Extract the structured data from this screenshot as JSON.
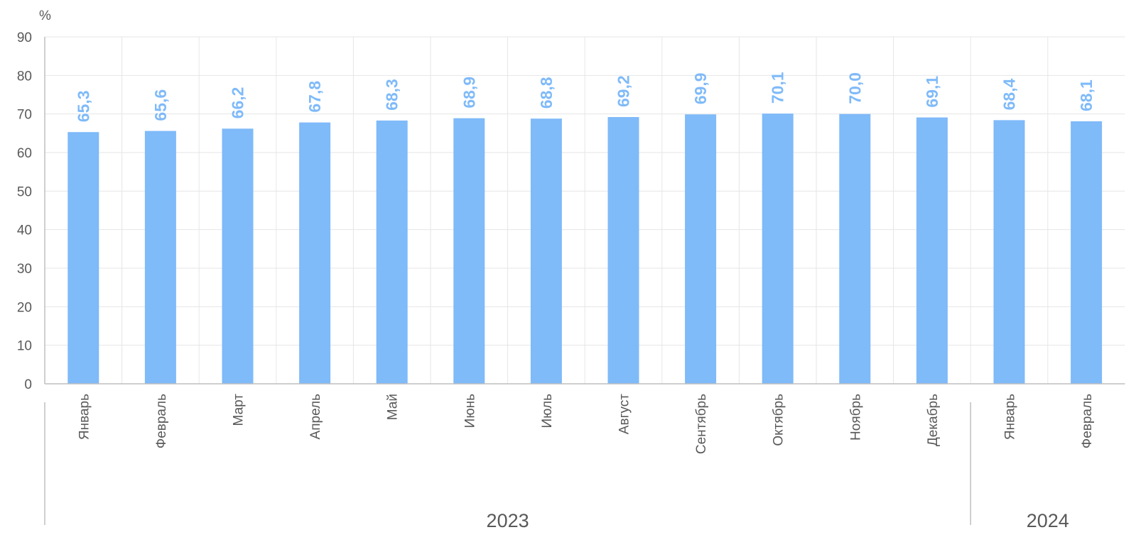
{
  "chart_data": {
    "type": "bar",
    "y_label": "%",
    "categories": [
      "Январь",
      "Февраль",
      "Март",
      "Апрель",
      "Май",
      "Июнь",
      "Июль",
      "Август",
      "Сентябрь",
      "Октябрь",
      "Ноябрь",
      "Декабрь",
      "Январь",
      "Февраль"
    ],
    "values": [
      65.3,
      65.6,
      66.2,
      67.8,
      68.3,
      68.9,
      68.8,
      69.2,
      69.9,
      70.1,
      70.0,
      69.1,
      68.4,
      68.1
    ],
    "value_labels": [
      "65,3",
      "65,6",
      "66,2",
      "67,8",
      "68,3",
      "68,9",
      "68,8",
      "69,2",
      "69,9",
      "70,1",
      "70,0",
      "69,1",
      "68,4",
      "68,1"
    ],
    "groups": [
      {
        "name": "2023",
        "span": 12
      },
      {
        "name": "2024",
        "span": 2
      }
    ],
    "color": "#7fbaf9",
    "ylim": [
      0,
      90
    ],
    "yticks": [
      0,
      10,
      20,
      30,
      40,
      50,
      60,
      70,
      80,
      90
    ],
    "grid": true
  }
}
